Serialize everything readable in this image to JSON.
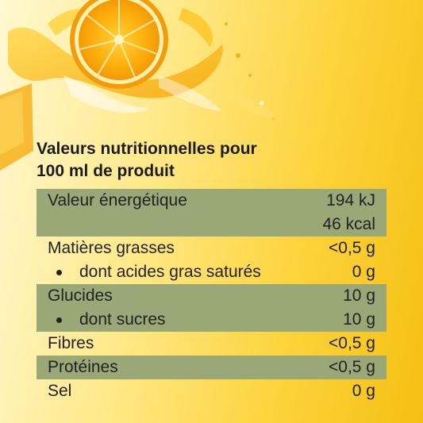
{
  "title": {
    "line1": "Valeurs nutritionnelles pour",
    "line2": "100 ml de produit"
  },
  "rows": [
    {
      "label": "Valeur énergétique",
      "value": "194 kJ",
      "value2": "46 kcal"
    },
    {
      "label": "Matières grasses",
      "value": "<0,5 g"
    },
    {
      "label": "dont acides gras saturés",
      "value": "0 g"
    },
    {
      "label": "Glucides",
      "value": "10 g"
    },
    {
      "label": "dont sucres",
      "value": "10 g"
    },
    {
      "label": "Fibres",
      "value": "<0,5 g"
    },
    {
      "label": "Protéines",
      "value": "<0,5 g"
    },
    {
      "label": "Sel",
      "value": "0 g"
    }
  ],
  "colors": {
    "row_shade": "#9aa777",
    "background_light": "#fff8d2",
    "background_dark": "#f6bf13"
  }
}
